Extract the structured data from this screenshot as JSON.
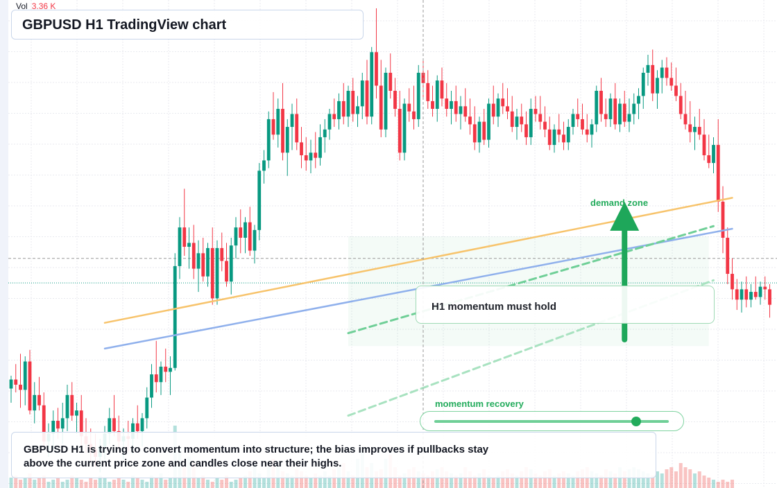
{
  "legend": {
    "vol_label": "Vol",
    "vol_value": "3.36 K"
  },
  "title": "GBPUSD H1 TradingView chart",
  "annotations": {
    "zone_label": "demand zone",
    "note": "H1 momentum must hold",
    "slider_label": "momentum recovery",
    "slider_value": 0.86
  },
  "description": "GBPUSD H1 is trying to convert momentum into structure; the bias improves if pullbacks stay above the current price zone and candles close near their highs.",
  "colors": {
    "up": "#089981",
    "down": "#f23645",
    "accent_green": "#22ab5b",
    "trend_orange": "#f7c36b",
    "trend_blue": "#8fb0ec"
  },
  "chart_data": {
    "type": "candlestick",
    "title": "GBPUSD H1 TradingView chart",
    "timeframe": "H1",
    "y_scale": "price (no axis labels shown)",
    "grid": true,
    "candles": [
      [
        1.2535,
        1.2545,
        1.2524,
        1.2542
      ],
      [
        1.2542,
        1.2554,
        1.2532,
        1.2538
      ],
      [
        1.2538,
        1.2562,
        1.252,
        1.2534
      ],
      [
        1.2534,
        1.256,
        1.2522,
        1.2556
      ],
      [
        1.2556,
        1.2565,
        1.2515,
        1.2518
      ],
      [
        1.2518,
        1.254,
        1.2508,
        1.253
      ],
      [
        1.253,
        1.2544,
        1.2518,
        1.2522
      ],
      [
        1.2522,
        1.2532,
        1.249,
        1.2494
      ],
      [
        1.2494,
        1.2508,
        1.2482,
        1.25
      ],
      [
        1.25,
        1.2518,
        1.2488,
        1.251
      ],
      [
        1.251,
        1.252,
        1.2496,
        1.2504
      ],
      [
        1.2504,
        1.2524,
        1.2492,
        1.2512
      ],
      [
        1.2512,
        1.2538,
        1.2502,
        1.253
      ],
      [
        1.253,
        1.254,
        1.251,
        1.2514
      ],
      [
        1.2514,
        1.2524,
        1.25,
        1.2518
      ],
      [
        1.2518,
        1.253,
        1.249,
        1.2498
      ],
      [
        1.2498,
        1.2512,
        1.2485,
        1.2492
      ],
      [
        1.2492,
        1.2504,
        1.2478,
        1.2488
      ],
      [
        1.2488,
        1.25,
        1.2474,
        1.2482
      ],
      [
        1.2482,
        1.2496,
        1.247,
        1.249
      ],
      [
        1.249,
        1.2506,
        1.248,
        1.25
      ],
      [
        1.25,
        1.252,
        1.2492,
        1.2512
      ],
      [
        1.2512,
        1.253,
        1.2498,
        1.2502
      ],
      [
        1.2502,
        1.2514,
        1.2488,
        1.2494
      ],
      [
        1.2494,
        1.2504,
        1.248,
        1.2498
      ],
      [
        1.2498,
        1.251,
        1.2486,
        1.2496
      ],
      [
        1.2496,
        1.2512,
        1.2484,
        1.2508
      ],
      [
        1.2508,
        1.2522,
        1.2496,
        1.2502
      ],
      [
        1.2502,
        1.2516,
        1.249,
        1.2512
      ],
      [
        1.2512,
        1.2536,
        1.2504,
        1.2528
      ],
      [
        1.2528,
        1.2554,
        1.252,
        1.2546
      ],
      [
        1.2546,
        1.2572,
        1.2532,
        1.254
      ],
      [
        1.254,
        1.2556,
        1.253,
        1.2552
      ],
      [
        1.2552,
        1.2566,
        1.254,
        1.2548
      ],
      [
        1.2548,
        1.256,
        1.253,
        1.2551
      ],
      [
        1.2551,
        1.264,
        1.2549,
        1.263
      ],
      [
        1.263,
        1.2668,
        1.262,
        1.266
      ],
      [
        1.266,
        1.269,
        1.2638,
        1.2645
      ],
      [
        1.2645,
        1.266,
        1.2628,
        1.2648
      ],
      [
        1.2648,
        1.2662,
        1.262,
        1.2628
      ],
      [
        1.2628,
        1.265,
        1.261,
        1.264
      ],
      [
        1.264,
        1.2652,
        1.2618,
        1.2622
      ],
      [
        1.2622,
        1.2648,
        1.2614,
        1.2644
      ],
      [
        1.2644,
        1.266,
        1.26,
        1.2605
      ],
      [
        1.2605,
        1.265,
        1.26,
        1.2644
      ],
      [
        1.2644,
        1.2656,
        1.2626,
        1.2634
      ],
      [
        1.2634,
        1.2648,
        1.2614,
        1.2618
      ],
      [
        1.2618,
        1.2652,
        1.2608,
        1.2646
      ],
      [
        1.2646,
        1.2668,
        1.2636,
        1.266
      ],
      [
        1.266,
        1.2674,
        1.264,
        1.2652
      ],
      [
        1.2652,
        1.2668,
        1.264,
        1.2664
      ],
      [
        1.2664,
        1.2676,
        1.2638,
        1.2642
      ],
      [
        1.2642,
        1.2662,
        1.2632,
        1.2658
      ],
      [
        1.2658,
        1.271,
        1.265,
        1.2704
      ],
      [
        1.2704,
        1.272,
        1.2694,
        1.2712
      ],
      [
        1.2712,
        1.275,
        1.2706,
        1.2744
      ],
      [
        1.2744,
        1.2765,
        1.2728,
        1.2732
      ],
      [
        1.2732,
        1.276,
        1.2722,
        1.2752
      ],
      [
        1.2752,
        1.2772,
        1.2712,
        1.2718
      ],
      [
        1.2718,
        1.2744,
        1.27,
        1.2738
      ],
      [
        1.2738,
        1.2756,
        1.272,
        1.2748
      ],
      [
        1.2748,
        1.276,
        1.272,
        1.2726
      ],
      [
        1.2726,
        1.2738,
        1.2706,
        1.2716
      ],
      [
        1.2716,
        1.273,
        1.2704,
        1.2712
      ],
      [
        1.2712,
        1.2728,
        1.2702,
        1.2718
      ],
      [
        1.2718,
        1.2734,
        1.2706,
        1.2714
      ],
      [
        1.2714,
        1.274,
        1.2708,
        1.273
      ],
      [
        1.273,
        1.2744,
        1.2718,
        1.2736
      ],
      [
        1.2736,
        1.2752,
        1.2728,
        1.2748
      ],
      [
        1.2748,
        1.276,
        1.2738,
        1.2744
      ],
      [
        1.2744,
        1.2764,
        1.2736,
        1.2758
      ],
      [
        1.2758,
        1.2772,
        1.274,
        1.2746
      ],
      [
        1.2746,
        1.277,
        1.2738,
        1.2766
      ],
      [
        1.2766,
        1.2776,
        1.2742,
        1.2748
      ],
      [
        1.2748,
        1.2762,
        1.2738,
        1.2754
      ],
      [
        1.2754,
        1.278,
        1.2744,
        1.2774
      ],
      [
        1.2774,
        1.279,
        1.274,
        1.2746
      ],
      [
        1.2746,
        1.28,
        1.274,
        1.2796
      ],
      [
        1.2796,
        1.283,
        1.276,
        1.277
      ],
      [
        1.277,
        1.279,
        1.273,
        1.2736
      ],
      [
        1.2736,
        1.2784,
        1.273,
        1.278
      ],
      [
        1.278,
        1.2795,
        1.276,
        1.2766
      ],
      [
        1.2766,
        1.2776,
        1.2746,
        1.2752
      ],
      [
        1.2752,
        1.2766,
        1.2712,
        1.2718
      ],
      [
        1.2718,
        1.276,
        1.2712,
        1.2756
      ],
      [
        1.2756,
        1.2768,
        1.2742,
        1.275
      ],
      [
        1.275,
        1.277,
        1.2736,
        1.2744
      ],
      [
        1.2744,
        1.2786,
        1.2738,
        1.278
      ],
      [
        1.278,
        1.279,
        1.276,
        1.2772
      ],
      [
        1.2772,
        1.2782,
        1.2752,
        1.2758
      ],
      [
        1.2758,
        1.277,
        1.2746,
        1.2752
      ],
      [
        1.2752,
        1.2778,
        1.2742,
        1.2774
      ],
      [
        1.2774,
        1.2784,
        1.2754,
        1.276
      ],
      [
        1.276,
        1.2772,
        1.2746,
        1.2752
      ],
      [
        1.2752,
        1.2766,
        1.274,
        1.2758
      ],
      [
        1.2758,
        1.277,
        1.2742,
        1.2748
      ],
      [
        1.2748,
        1.2762,
        1.2736,
        1.2754
      ],
      [
        1.2754,
        1.2768,
        1.2742,
        1.2746
      ],
      [
        1.2746,
        1.276,
        1.2732,
        1.274
      ],
      [
        1.274,
        1.2754,
        1.272,
        1.2726
      ],
      [
        1.2726,
        1.2746,
        1.2718,
        1.2742
      ],
      [
        1.2742,
        1.2752,
        1.2724,
        1.2728
      ],
      [
        1.2728,
        1.276,
        1.2722,
        1.2756
      ],
      [
        1.2756,
        1.277,
        1.274,
        1.2746
      ],
      [
        1.2746,
        1.2764,
        1.2738,
        1.276
      ],
      [
        1.276,
        1.2772,
        1.2748,
        1.2754
      ],
      [
        1.2754,
        1.2768,
        1.2744,
        1.275
      ],
      [
        1.275,
        1.2762,
        1.2734,
        1.2738
      ],
      [
        1.2738,
        1.2752,
        1.2728,
        1.2746
      ],
      [
        1.2746,
        1.2756,
        1.2734,
        1.274
      ],
      [
        1.274,
        1.275,
        1.2724,
        1.273
      ],
      [
        1.273,
        1.276,
        1.2724,
        1.2752
      ],
      [
        1.2752,
        1.2762,
        1.2742,
        1.2748
      ],
      [
        1.2748,
        1.2762,
        1.2736,
        1.2742
      ],
      [
        1.2742,
        1.2754,
        1.273,
        1.2736
      ],
      [
        1.2736,
        1.2746,
        1.272,
        1.2724
      ],
      [
        1.2724,
        1.274,
        1.2718,
        1.2736
      ],
      [
        1.2736,
        1.2748,
        1.2726,
        1.2732
      ],
      [
        1.2732,
        1.2742,
        1.272,
        1.2726
      ],
      [
        1.2726,
        1.2744,
        1.272,
        1.2738
      ],
      [
        1.2738,
        1.2752,
        1.2732,
        1.2748
      ],
      [
        1.2748,
        1.276,
        1.2738,
        1.2744
      ],
      [
        1.2744,
        1.2756,
        1.2732,
        1.2736
      ],
      [
        1.2736,
        1.2748,
        1.2726,
        1.2732
      ],
      [
        1.2732,
        1.2744,
        1.2722,
        1.274
      ],
      [
        1.274,
        1.277,
        1.2734,
        1.2766
      ],
      [
        1.2766,
        1.2776,
        1.2742,
        1.2748
      ],
      [
        1.2748,
        1.276,
        1.2738,
        1.2744
      ],
      [
        1.2744,
        1.2764,
        1.2738,
        1.276
      ],
      [
        1.276,
        1.2772,
        1.2736,
        1.274
      ],
      [
        1.274,
        1.276,
        1.2734,
        1.2756
      ],
      [
        1.2756,
        1.2766,
        1.2738,
        1.2742
      ],
      [
        1.2742,
        1.276,
        1.2734,
        1.2748
      ],
      [
        1.2748,
        1.2764,
        1.274,
        1.2756
      ],
      [
        1.2756,
        1.2768,
        1.2744,
        1.2762
      ],
      [
        1.2762,
        1.2784,
        1.2752,
        1.278
      ],
      [
        1.278,
        1.2794,
        1.277,
        1.2786
      ],
      [
        1.2786,
        1.2798,
        1.2758,
        1.2764
      ],
      [
        1.2764,
        1.2782,
        1.2752,
        1.2776
      ],
      [
        1.2776,
        1.279,
        1.2764,
        1.2784
      ],
      [
        1.2784,
        1.2792,
        1.277,
        1.2776
      ],
      [
        1.2776,
        1.2788,
        1.2766,
        1.277
      ],
      [
        1.277,
        1.2784,
        1.2758,
        1.2762
      ],
      [
        1.2762,
        1.2772,
        1.2744,
        1.2748
      ],
      [
        1.2748,
        1.2766,
        1.2736,
        1.274
      ],
      [
        1.274,
        1.2758,
        1.2726,
        1.2734
      ],
      [
        1.2734,
        1.2746,
        1.272,
        1.2738
      ],
      [
        1.2738,
        1.2752,
        1.2728,
        1.2732
      ],
      [
        1.2732,
        1.2744,
        1.2712,
        1.2716
      ],
      [
        1.2716,
        1.2732,
        1.2706,
        1.271
      ],
      [
        1.271,
        1.273,
        1.2702,
        1.2724
      ],
      [
        1.2724,
        1.2744,
        1.2672,
        1.268
      ],
      [
        1.268,
        1.2692,
        1.264,
        1.2652
      ],
      [
        1.2652,
        1.266,
        1.2616,
        1.2624
      ],
      [
        1.2624,
        1.2636,
        1.2604,
        1.2612
      ],
      [
        1.2612,
        1.262,
        1.2596,
        1.2604
      ],
      [
        1.2604,
        1.2618,
        1.2594,
        1.2612
      ],
      [
        1.2612,
        1.2622,
        1.2598,
        1.2604
      ],
      [
        1.2604,
        1.2616,
        1.2598,
        1.261
      ],
      [
        1.261,
        1.2622,
        1.2604,
        1.2606
      ],
      [
        1.2606,
        1.2618,
        1.26,
        1.2614
      ],
      [
        1.2614,
        1.2622,
        1.2604,
        1.2612
      ],
      [
        1.2612,
        1.2616,
        1.259,
        1.26
      ]
    ],
    "volume": [
      5,
      6,
      4,
      5,
      7,
      4,
      5,
      6,
      3,
      4,
      5,
      3,
      4,
      6,
      5,
      4,
      3,
      5,
      4,
      6,
      5,
      3,
      4,
      5,
      4,
      3,
      6,
      5,
      4,
      3,
      6,
      5,
      7,
      4,
      5,
      30,
      20,
      10,
      15,
      12,
      5,
      6,
      4,
      3,
      5,
      4,
      6,
      3,
      4,
      5,
      6,
      8,
      12,
      7,
      5,
      10,
      14,
      10,
      8,
      7,
      6,
      9,
      8,
      6,
      5,
      7,
      6,
      8,
      6,
      9,
      10,
      12,
      8,
      6,
      14,
      18,
      10,
      12,
      8,
      9,
      14,
      16,
      10,
      6,
      7,
      9,
      10,
      8,
      7,
      6,
      8,
      9,
      10,
      8,
      7,
      6,
      7,
      10,
      8,
      6,
      7,
      9,
      6,
      5,
      6,
      8,
      9,
      7,
      6,
      8,
      10,
      9,
      7,
      6,
      8,
      9,
      6,
      7,
      8,
      7,
      6,
      8,
      9,
      10,
      8,
      7,
      6,
      9,
      8,
      7,
      10,
      8,
      9,
      10,
      9,
      8,
      7,
      6,
      8,
      7,
      9,
      10,
      8,
      12,
      10,
      9,
      7,
      8,
      6,
      5,
      4,
      3,
      4,
      3,
      4
    ],
    "trendlines": [
      {
        "color": "#f7c36b",
        "p1": [
          20,
          1.2586
        ],
        "p2": [
          154,
          1.2683
        ]
      },
      {
        "color": "#8fb0ec",
        "p1": [
          20,
          1.2566
        ],
        "p2": [
          154,
          1.2659
        ]
      },
      {
        "color": "#6fcf97",
        "dashed": true,
        "p1": [
          72,
          1.2578
        ],
        "p2": [
          150,
          1.2661
        ]
      },
      {
        "color": "#a8e2c0",
        "dashed": true,
        "p1": [
          72,
          1.2514
        ],
        "p2": [
          150,
          1.2619
        ]
      }
    ],
    "zone": {
      "x_from": 72,
      "x_to": 149,
      "y_from": 1.2653,
      "y_to": 1.2568
    },
    "horizontal_lines": [
      {
        "price": 1.2636,
        "style": "dashed",
        "color": "#9a9a9a"
      },
      {
        "price": 1.2617,
        "style": "dotted",
        "color": "#089981"
      }
    ],
    "arrow": {
      "x": 131,
      "from": 1.2573,
      "to": 1.268
    },
    "crosshair_x": 88
  }
}
